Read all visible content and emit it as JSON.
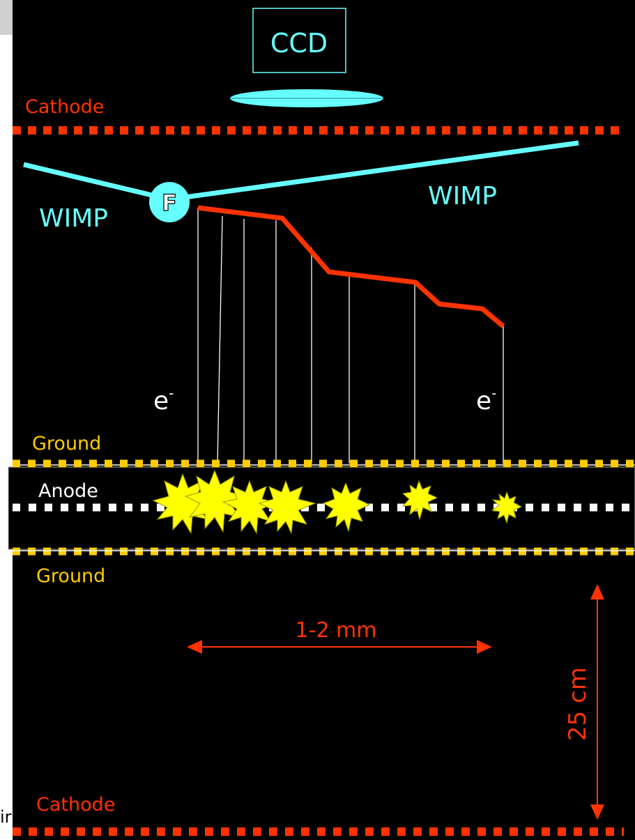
{
  "labels": {
    "ccd": "CCD",
    "cathode_top": "Cathode",
    "wimp_left": "WIMP",
    "wimp_right": "WIMP",
    "recoil_nucleus": "F",
    "electron_left": "e",
    "electron_right": "e",
    "electron_superscript": "-",
    "ground_top": "Ground",
    "anode": "Anode",
    "ground_bottom": "Ground",
    "width_dimension": "1-2 mm",
    "height_dimension": "25 cm",
    "cathode_bottom": "Cathode",
    "clipped_edge_text": "ir"
  },
  "colors": {
    "background": "#000000",
    "cathode": "#ff3300",
    "wimp": "#66ffff",
    "ground": "#ffcc00",
    "anode_dots": "#ffffff",
    "track": "#ff3300",
    "drift_lines": "#ffffff",
    "avalanche": "#ffff00",
    "dimension": "#ff3300"
  }
}
